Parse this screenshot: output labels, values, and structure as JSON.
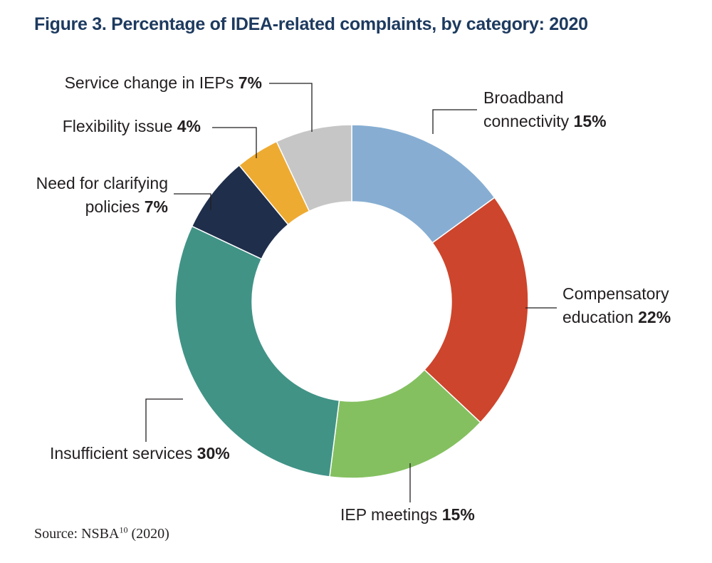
{
  "chart_data": {
    "type": "pie",
    "variant": "donut",
    "title": "Figure 3. Percentage of IDEA-related complaints, by category: 2020",
    "slices": [
      {
        "label": "Broadband connectivity",
        "lines": [
          "Broadband",
          "connectivity"
        ],
        "value": 15,
        "value_label": "15%",
        "color": "#87aed2"
      },
      {
        "label": "Compensatory education",
        "lines": [
          "Compensatory",
          "education"
        ],
        "value": 22,
        "value_label": "22%",
        "color": "#cd452c"
      },
      {
        "label": "IEP meetings",
        "lines": [
          "IEP meetings"
        ],
        "value": 15,
        "value_label": "15%",
        "color": "#84c060"
      },
      {
        "label": "Insufficient services",
        "lines": [
          "Insufficient services"
        ],
        "value": 30,
        "value_label": "30%",
        "color": "#419386"
      },
      {
        "label": "Need for clarifying policies",
        "lines": [
          "Need for clarifying",
          "policies"
        ],
        "value": 7,
        "value_label": "7%",
        "color": "#1f2e4b"
      },
      {
        "label": "Flexibility issue",
        "lines": [
          "Flexibility issue"
        ],
        "value": 4,
        "value_label": "4%",
        "color": "#eeab32"
      },
      {
        "label": "Service change in IEPs",
        "lines": [
          "Service change in IEPs"
        ],
        "value": 7,
        "value_label": "7%",
        "color": "#c6c6c6"
      }
    ]
  },
  "source": {
    "prefix": "Source: NSBA",
    "superscript": "10",
    "suffix": " (2020)"
  }
}
